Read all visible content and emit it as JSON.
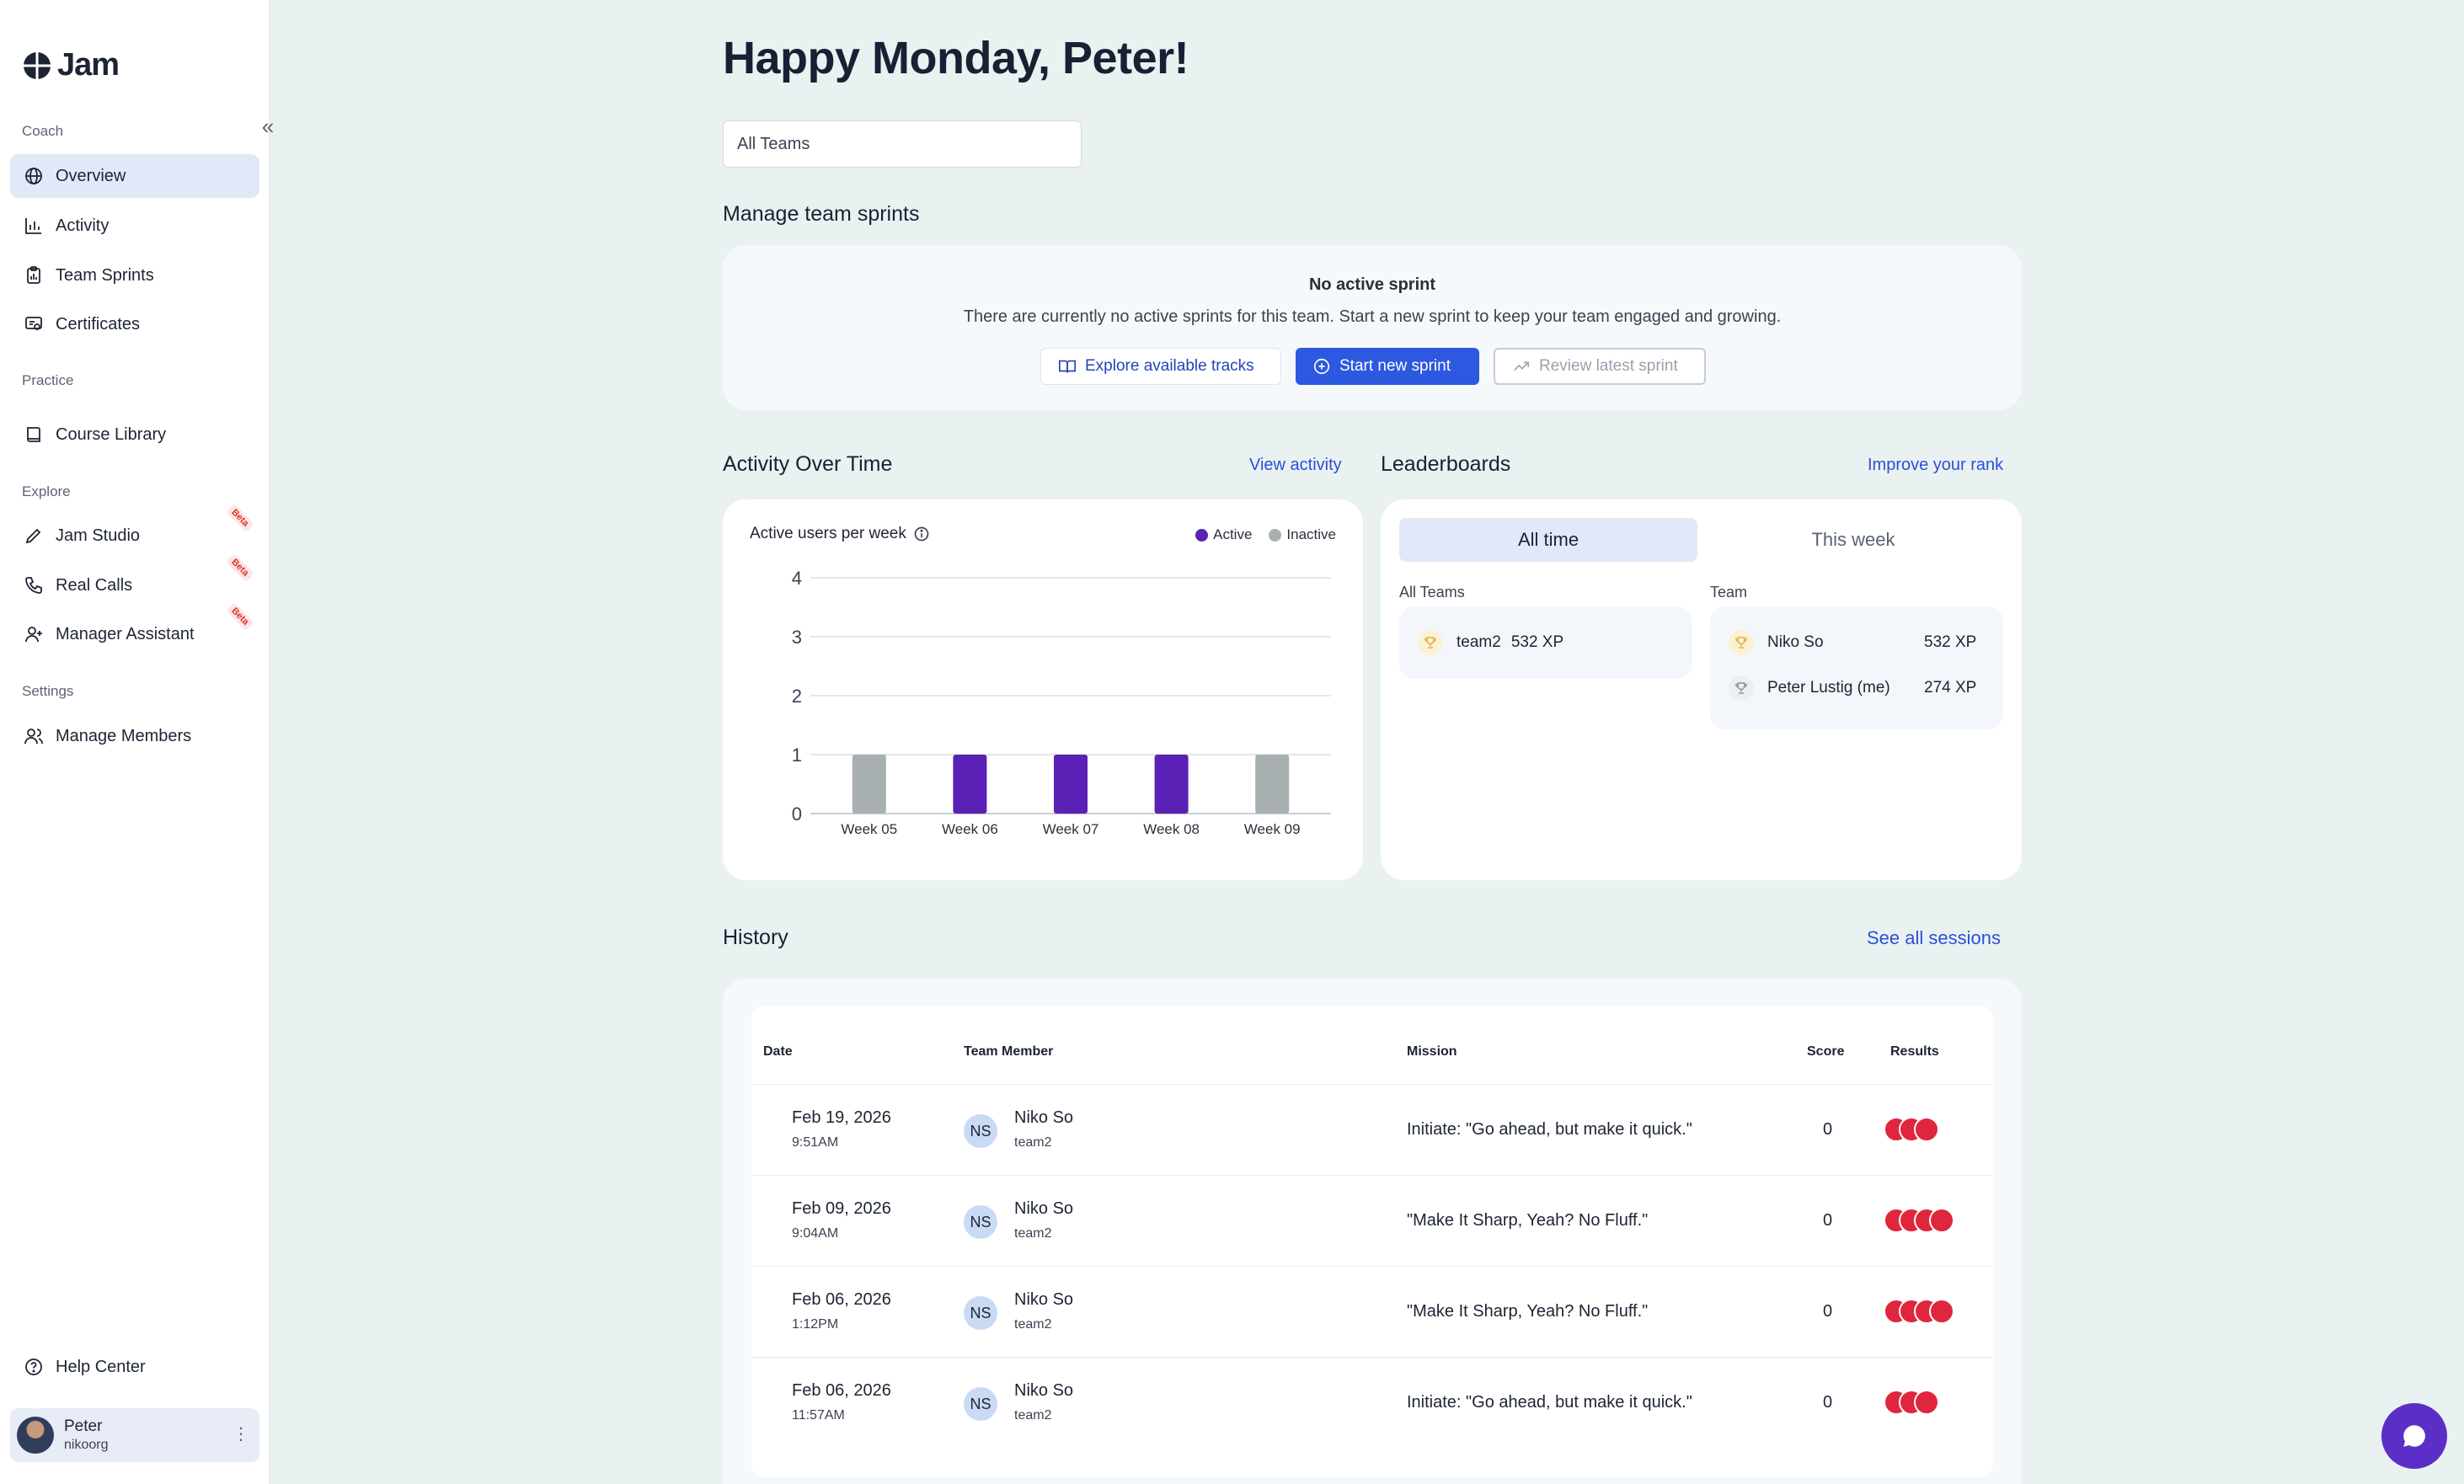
{
  "app": {
    "name": "Jam"
  },
  "sidebar": {
    "sections": {
      "coach": "Coach",
      "practice": "Practice",
      "explore": "Explore",
      "settings": "Settings"
    },
    "items": {
      "overview": "Overview",
      "activity": "Activity",
      "team_sprints": "Team Sprints",
      "certificates": "Certificates",
      "course_library": "Course Library",
      "jam_studio": "Jam Studio",
      "real_calls": "Real Calls",
      "manager_assistant": "Manager Assistant",
      "manage_members": "Manage Members",
      "help_center": "Help Center"
    },
    "beta_badge": "Beta",
    "user": {
      "name": "Peter",
      "handle": "nikoorg"
    }
  },
  "header": {
    "greeting": "Happy Monday, Peter!",
    "team_select_value": "All Teams"
  },
  "sprints": {
    "title": "Manage team sprints",
    "empty_title": "No active sprint",
    "empty_desc": "There are currently no active sprints for this team. Start a new sprint to keep your team engaged and growing.",
    "explore_label": "Explore available tracks",
    "start_label": "Start new sprint",
    "review_label": "Review latest sprint"
  },
  "activity": {
    "title": "Activity Over Time",
    "link": "View activity",
    "chart_title": "Active users per week",
    "legend_active": "Active",
    "legend_inactive": "Inactive"
  },
  "chart_data": {
    "type": "bar",
    "title": "Active users per week",
    "categories": [
      "Week 05",
      "Week 06",
      "Week 07",
      "Week 08",
      "Week 09"
    ],
    "series": [
      {
        "name": "Active",
        "values": [
          0,
          1,
          1,
          1,
          0
        ],
        "color": "#5b21b6"
      },
      {
        "name": "Inactive",
        "values": [
          1,
          0,
          0,
          0,
          1
        ],
        "color": "#a9b0b2"
      }
    ],
    "ylim": [
      0,
      4
    ],
    "yticks": [
      0,
      1,
      2,
      3,
      4
    ],
    "grid": true,
    "legend": "top-right"
  },
  "leaderboards": {
    "title": "Leaderboards",
    "link": "Improve your rank",
    "tab_all_time": "All time",
    "tab_this_week": "This week",
    "all_teams_label": "All Teams",
    "team_label": "Team",
    "all_teams": [
      {
        "name": "team2",
        "xp": "532 XP"
      }
    ],
    "team": [
      {
        "name": "Niko So",
        "xp": "532 XP"
      },
      {
        "name": "Peter Lustig (me)",
        "xp": "274 XP"
      }
    ]
  },
  "history": {
    "title": "History",
    "link": "See all sessions",
    "columns": {
      "date": "Date",
      "member": "Team Member",
      "mission": "Mission",
      "score": "Score",
      "results": "Results"
    },
    "rows": [
      {
        "date": "Feb 19, 2026",
        "time": "9:51AM",
        "initials": "NS",
        "member": "Niko So",
        "team": "team2",
        "mission": "Initiate: \"Go ahead, but make it quick.\"",
        "score": "0",
        "results": 3
      },
      {
        "date": "Feb 09, 2026",
        "time": "9:04AM",
        "initials": "NS",
        "member": "Niko So",
        "team": "team2",
        "mission": "\"Make It Sharp, Yeah? No Fluff.\"",
        "score": "0",
        "results": 4
      },
      {
        "date": "Feb 06, 2026",
        "time": "1:12PM",
        "initials": "NS",
        "member": "Niko So",
        "team": "team2",
        "mission": "\"Make It Sharp, Yeah? No Fluff.\"",
        "score": "0",
        "results": 4
      },
      {
        "date": "Feb 06, 2026",
        "time": "11:57AM",
        "initials": "NS",
        "member": "Niko So",
        "team": "team2",
        "mission": "Initiate: \"Go ahead, but make it quick.\"",
        "score": "0",
        "results": 3
      }
    ]
  },
  "colors": {
    "accent": "#2d58e0",
    "active_bar": "#5b21b6",
    "inactive_bar": "#a9b0b2",
    "result_red": "#e0263d",
    "chat": "#5b2fc7"
  }
}
